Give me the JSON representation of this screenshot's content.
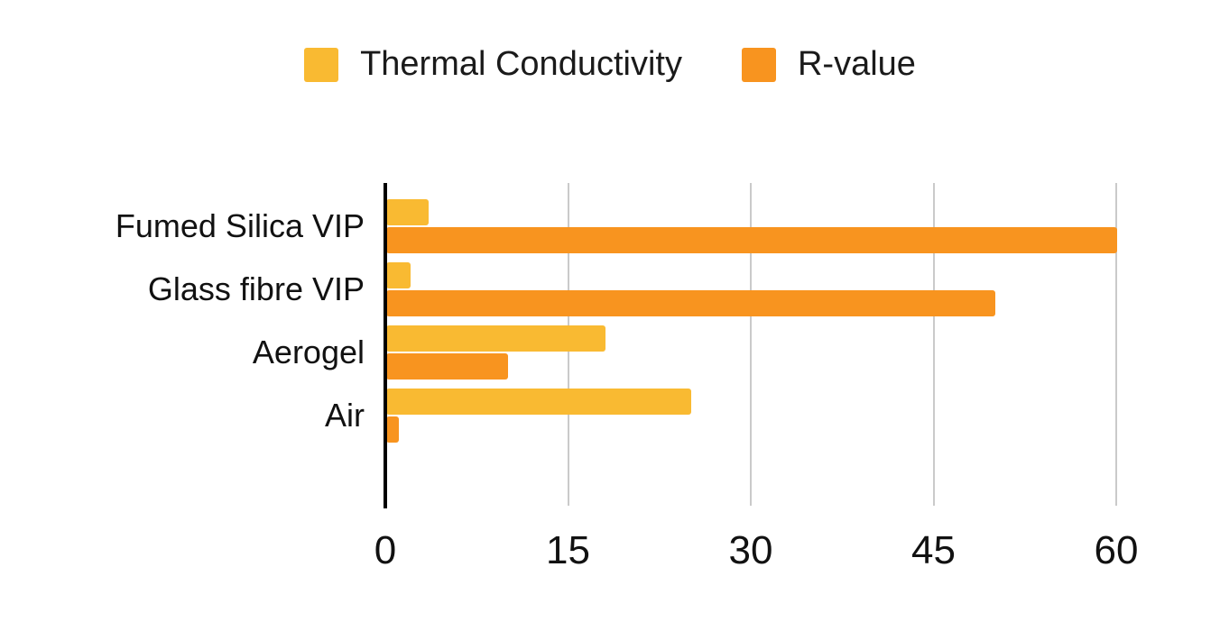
{
  "colors": {
    "thermal_conductivity": "#F9BA32",
    "r_value": "#F8941F",
    "axis": "#000000",
    "gridline": "#CACACA",
    "background": "#FFFFFF",
    "text": "#111111"
  },
  "legend": [
    {
      "label": "Thermal Conductivity",
      "color": "#F9BA32"
    },
    {
      "label": "R-value",
      "color": "#F8941F"
    }
  ],
  "chart_data": {
    "type": "bar",
    "orientation": "horizontal",
    "title": "",
    "xlabel": "",
    "ylabel": "",
    "categories": [
      "Fumed Silica VIP",
      "Glass fibre VIP",
      "Aerogel",
      "Air"
    ],
    "series": [
      {
        "name": "Thermal Conductivity",
        "color": "#F9BA32",
        "values": [
          3.5,
          2,
          18,
          25
        ]
      },
      {
        "name": "R-value",
        "color": "#F8941F",
        "values": [
          60,
          50,
          10,
          1
        ]
      }
    ],
    "xlim": [
      0,
      60
    ],
    "x_ticks": [
      0,
      15,
      30,
      45,
      60
    ],
    "grid": true,
    "legend_position": "top"
  }
}
